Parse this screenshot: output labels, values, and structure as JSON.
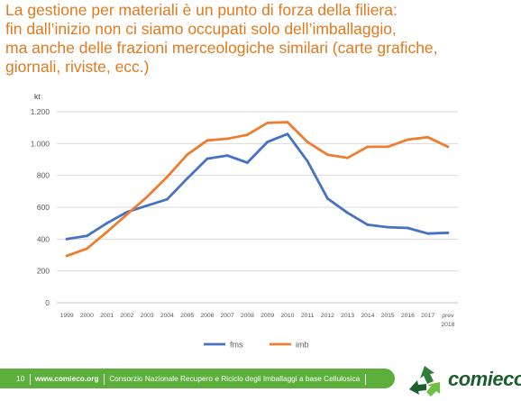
{
  "slide": {
    "title_lines": [
      "La gestione per materiali è un punto di forza della filiera:",
      "fin dall’inizio non ci siamo occupati solo dell’imballaggio,",
      "ma anche delle frazioni merceologiche similari (carte grafiche,",
      "giornali, riviste, ecc.)"
    ],
    "accent_color": "#E07A1F"
  },
  "chart_data": {
    "type": "line",
    "ylabel": "kt",
    "ylim": [
      0,
      1200
    ],
    "yticks": [
      0,
      200,
      400,
      600,
      800,
      1000,
      1200
    ],
    "ytick_labels": [
      "0",
      "200",
      "400",
      "600",
      "800",
      "1.000",
      "1.200"
    ],
    "categories": [
      "1999",
      "2000",
      "2001",
      "2002",
      "2003",
      "2004",
      "2005",
      "2006",
      "2007",
      "2008",
      "2009",
      "2010",
      "2011",
      "2012",
      "2013",
      "2014",
      "2015",
      "2016",
      "2017",
      "prev 2018"
    ],
    "category_labels": [
      [
        "1999"
      ],
      [
        "2000"
      ],
      [
        "2001"
      ],
      [
        "2002"
      ],
      [
        "2003"
      ],
      [
        "2004"
      ],
      [
        "2005"
      ],
      [
        "2006"
      ],
      [
        "2007"
      ],
      [
        "2008"
      ],
      [
        "2009"
      ],
      [
        "2010"
      ],
      [
        "2011"
      ],
      [
        "2012"
      ],
      [
        "2013"
      ],
      [
        "2014"
      ],
      [
        "2015"
      ],
      [
        "2016"
      ],
      [
        "2017"
      ],
      [
        "prev",
        "2018"
      ]
    ],
    "grid": true,
    "legend_position": "bottom",
    "series": [
      {
        "name": "fms",
        "color": "#4472C4",
        "values": [
          400,
          420,
          500,
          570,
          610,
          650,
          780,
          905,
          925,
          880,
          1010,
          1060,
          890,
          655,
          565,
          490,
          475,
          470,
          435,
          440
        ]
      },
      {
        "name": "imb",
        "color": "#ED7D31",
        "values": [
          295,
          340,
          445,
          555,
          665,
          790,
          930,
          1020,
          1030,
          1055,
          1130,
          1135,
          1010,
          930,
          910,
          980,
          980,
          1025,
          1040,
          980
        ]
      }
    ]
  },
  "footer": {
    "page_number": "10",
    "url": "www.comieco.org",
    "org_name": "Consorzio Nazionale Recupero e Riciclo degli Imballaggi a base Cellulosica",
    "bar_color": "#5DAF3C"
  },
  "logo": {
    "text": "comieco",
    "icon": "recycle-arrows-icon"
  }
}
